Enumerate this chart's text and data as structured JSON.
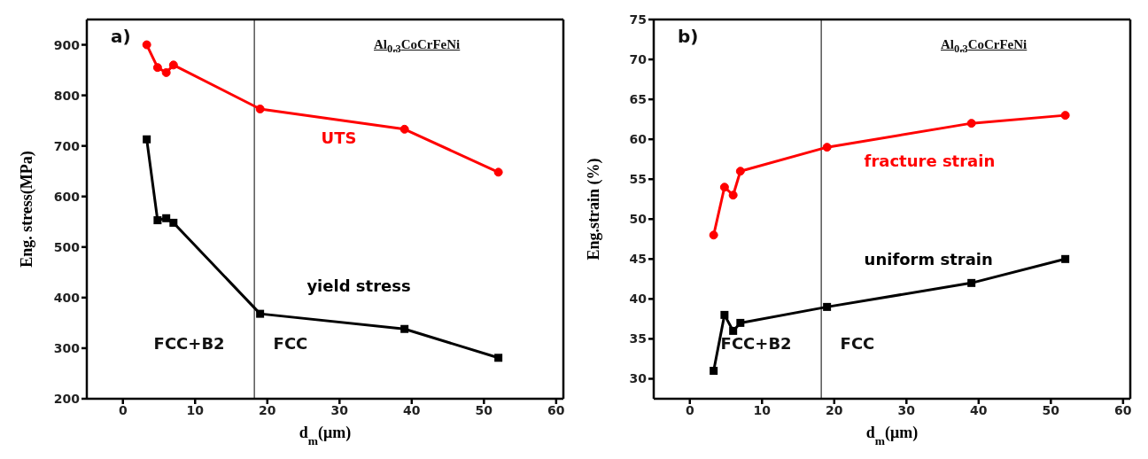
{
  "chart_data": [
    {
      "type": "line",
      "xlabel": "d$_{m}$(μm)",
      "ylabel": "Eng. stress(MPa)",
      "annotations": [
        "a)",
        "Al$_{0.3}$CoCrFeNi",
        "FCC+B2",
        "FCC"
      ],
      "xlim": [
        -5,
        61
      ],
      "xticks": [
        0,
        10,
        20,
        30,
        40,
        50,
        60
      ],
      "ylim": [
        200,
        950
      ],
      "yticks": [
        200,
        300,
        400,
        500,
        600,
        700,
        800,
        900
      ],
      "ref_lines": [
        {
          "axis": "x",
          "value": 18.2,
          "color": "#000000"
        }
      ],
      "series": [
        {
          "name": "UTS",
          "color": "#ff0000",
          "marker": "circle",
          "x": [
            3.3,
            4.8,
            6,
            7,
            19,
            39,
            52
          ],
          "values": [
            900,
            855,
            845,
            860,
            773,
            733,
            648
          ]
        },
        {
          "name": "yield stress",
          "color": "#000000",
          "marker": "square",
          "x": [
            3.3,
            4.8,
            6,
            7,
            19,
            39,
            52
          ],
          "values": [
            713,
            553,
            557,
            548,
            368,
            338,
            281
          ]
        }
      ]
    },
    {
      "type": "line",
      "xlabel": "d$_{m}$(μm)",
      "ylabel": "Eng.strain (%)",
      "annotations": [
        "b)",
        "Al$_{0.3}$CoCrFeNi",
        "FCC+B2",
        "FCC"
      ],
      "xlim": [
        -5,
        61
      ],
      "xticks": [
        0,
        10,
        20,
        30,
        40,
        50,
        60
      ],
      "ylim": [
        27.5,
        75
      ],
      "yticks": [
        30,
        35,
        40,
        45,
        50,
        55,
        60,
        65,
        70,
        75
      ],
      "ref_lines": [
        {
          "axis": "x",
          "value": 18.2,
          "color": "#000000"
        }
      ],
      "series": [
        {
          "name": "fracture strain",
          "color": "#ff0000",
          "marker": "circle",
          "x": [
            3.3,
            4.8,
            6,
            7,
            19,
            39,
            52
          ],
          "values": [
            48,
            54,
            53,
            56,
            59,
            62,
            63
          ]
        },
        {
          "name": "uniform strain",
          "color": "#000000",
          "marker": "square",
          "x": [
            3.3,
            4.8,
            6,
            7,
            19,
            39,
            52
          ],
          "values": [
            31,
            38,
            36,
            37,
            39,
            42,
            45
          ]
        }
      ]
    }
  ]
}
